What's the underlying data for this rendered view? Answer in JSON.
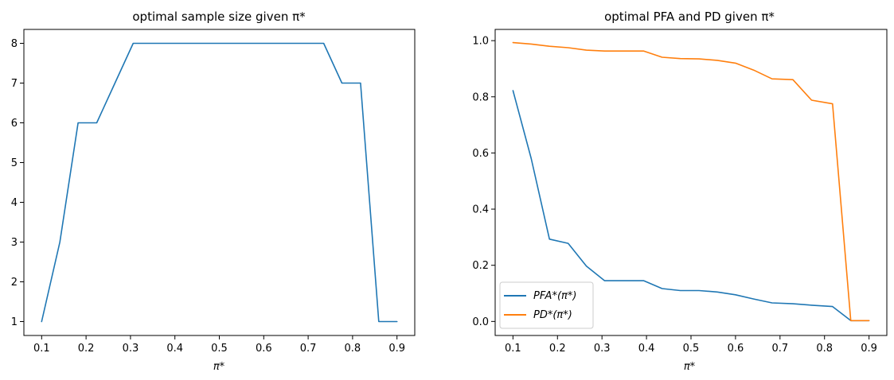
{
  "chart_data": [
    {
      "type": "line",
      "title": "optimal sample size given π*",
      "xlabel": "π*",
      "ylabel": "",
      "xlim": [
        0.06,
        0.94
      ],
      "ylim": [
        0.65,
        8.35
      ],
      "xticks": [
        "0.1",
        "0.2",
        "0.3",
        "0.4",
        "0.5",
        "0.6",
        "0.7",
        "0.8",
        "0.9"
      ],
      "yticks": [
        "1",
        "2",
        "3",
        "4",
        "5",
        "6",
        "7",
        "8"
      ],
      "grid": false,
      "x": [
        0.1,
        0.141,
        0.182,
        0.224,
        0.265,
        0.306,
        0.347,
        0.388,
        0.429,
        0.471,
        0.512,
        0.553,
        0.594,
        0.635,
        0.676,
        0.718,
        0.735,
        0.776,
        0.818,
        0.859,
        0.9
      ],
      "series": [
        {
          "color": "#1f77b4",
          "values": [
            1,
            3,
            6,
            6,
            7,
            8,
            8,
            8,
            8,
            8,
            8,
            8,
            8,
            8,
            8,
            8,
            8,
            7,
            7,
            1,
            1
          ]
        }
      ]
    },
    {
      "type": "line",
      "title": "optimal PFA and PD given π*",
      "xlabel": "π*",
      "ylabel": "",
      "xlim": [
        0.06,
        0.94
      ],
      "ylim": [
        -0.05,
        1.04
      ],
      "xticks": [
        "0.1",
        "0.2",
        "0.3",
        "0.4",
        "0.5",
        "0.6",
        "0.7",
        "0.8",
        "0.9"
      ],
      "yticks": [
        "0.0",
        "0.2",
        "0.4",
        "0.6",
        "0.8",
        "1.0"
      ],
      "grid": false,
      "legend_position": "lower-left",
      "x": [
        0.1,
        0.141,
        0.182,
        0.224,
        0.265,
        0.306,
        0.347,
        0.394,
        0.435,
        0.476,
        0.518,
        0.559,
        0.6,
        0.641,
        0.682,
        0.729,
        0.771,
        0.818,
        0.859,
        0.9
      ],
      "series": [
        {
          "name": "PFA*(π*)",
          "color": "#1f77b4",
          "values": [
            0.822,
            0.58,
            0.293,
            0.278,
            0.197,
            0.145,
            0.145,
            0.145,
            0.117,
            0.11,
            0.11,
            0.105,
            0.095,
            0.08,
            0.066,
            0.063,
            0.058,
            0.053,
            0.003,
            0.003
          ]
        },
        {
          "name": "PD*(π*)",
          "color": "#ff7f0e",
          "values": [
            0.993,
            0.988,
            0.98,
            0.975,
            0.966,
            0.963,
            0.963,
            0.963,
            0.941,
            0.936,
            0.935,
            0.93,
            0.92,
            0.895,
            0.864,
            0.861,
            0.788,
            0.775,
            0.003,
            0.003
          ]
        }
      ]
    }
  ]
}
